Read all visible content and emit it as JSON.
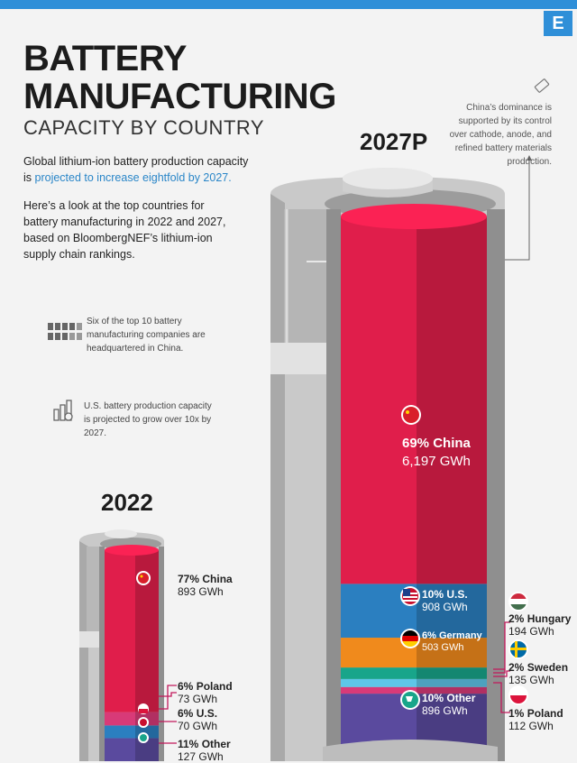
{
  "header": {
    "logo": "E",
    "title_line1": "BATTERY",
    "title_line2": "MANUFACTURING",
    "subtitle": "CAPACITY BY COUNTRY"
  },
  "intro": {
    "text_before": "Global lithium-ion battery production capacity is ",
    "highlight": "projected to increase eightfold by 2027.",
    "paragraph": "Here’s a look at the top countries for battery manufacturing in 2022 and 2027, based on BloombergNEF’s lithium-ion supply chain rankings."
  },
  "notes": {
    "companies": "Six of the top 10 battery manufacturing companies are headquartered in China.",
    "us_growth": "U.S. battery production capacity is projected to grow over 10x by 2027.",
    "china_dominance": "China’s dominance is supported by its control over cathode, anode, and refined battery materials production."
  },
  "icons": {
    "companies": "factory-grid-icon",
    "us_growth": "bar-chart-growth-icon",
    "china_dominance": "battery-tag-icon"
  },
  "chart_data": [
    {
      "type": "bar",
      "title": "2022",
      "unit": "GWh",
      "series": [
        {
          "name": "China",
          "share": "77%",
          "value": 893,
          "value_label": "893 GWh",
          "color": "#e01e4b"
        },
        {
          "name": "Poland",
          "share": "6%",
          "value": 73,
          "value_label": "73 GWh",
          "color": "#d83a78"
        },
        {
          "name": "U.S.",
          "share": "6%",
          "value": 70,
          "value_label": "70 GWh",
          "color": "#2b7fc0"
        },
        {
          "name": "Other",
          "share": "11%",
          "value": 127,
          "value_label": "127 GWh",
          "color": "#5a4a9e"
        }
      ]
    },
    {
      "type": "bar",
      "title": "2027P",
      "unit": "GWh",
      "series": [
        {
          "name": "China",
          "share": "69%",
          "value": 6197,
          "value_label": "6,197 GWh",
          "color": "#e01e4b"
        },
        {
          "name": "U.S.",
          "share": "10%",
          "value": 908,
          "value_label": "908 GWh",
          "color": "#2b7fc0"
        },
        {
          "name": "Germany",
          "share": "6%",
          "value": 503,
          "value_label": "503 GWh",
          "color": "#f08a1c"
        },
        {
          "name": "Hungary",
          "share": "2%",
          "value": 194,
          "value_label": "194 GWh",
          "color": "#18a58a"
        },
        {
          "name": "Sweden",
          "share": "2%",
          "value": 135,
          "value_label": "135 GWh",
          "color": "#5ec6e8"
        },
        {
          "name": "Poland",
          "share": "1%",
          "value": 112,
          "value_label": "112 GWh",
          "color": "#d83a78"
        },
        {
          "name": "Other",
          "share": "10%",
          "value": 896,
          "value_label": "896 GWh",
          "color": "#5a4a9e"
        }
      ]
    }
  ]
}
